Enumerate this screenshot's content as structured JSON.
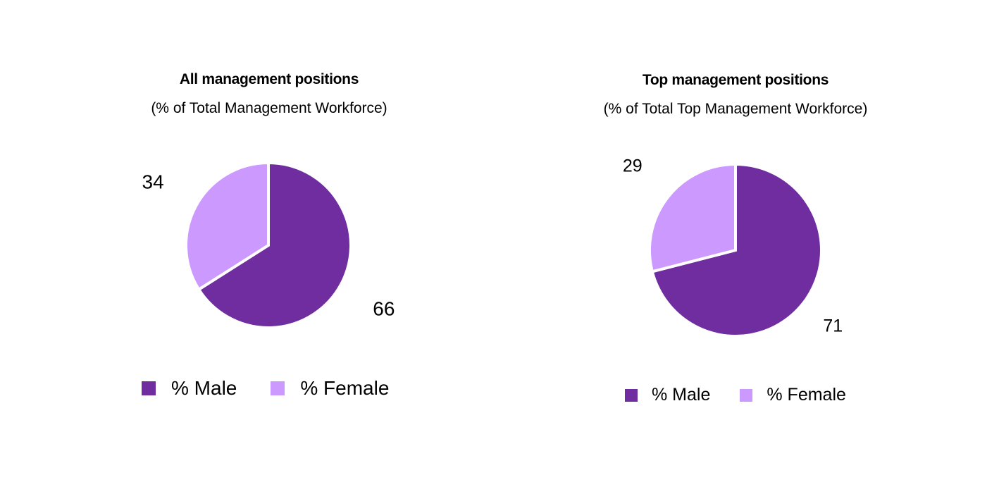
{
  "colors": {
    "male": "#6f2da0",
    "female": "#cc99ff"
  },
  "chart_data": [
    {
      "type": "pie",
      "title": "All management positions",
      "subtitle": "(% of Total Management Workforce)",
      "categories": [
        "% Male",
        "% Female"
      ],
      "values": [
        66,
        34
      ],
      "data_labels": [
        "66",
        "34"
      ],
      "legend": {
        "position": "bottom",
        "entries": [
          "% Male",
          "% Female"
        ]
      }
    },
    {
      "type": "pie",
      "title": "Top management positions",
      "subtitle": "(% of Total Top Management Workforce)",
      "categories": [
        "% Male",
        "% Female"
      ],
      "values": [
        71,
        29
      ],
      "data_labels": [
        "71",
        "29"
      ],
      "legend": {
        "position": "bottom",
        "entries": [
          "% Male",
          "% Female"
        ]
      }
    }
  ]
}
